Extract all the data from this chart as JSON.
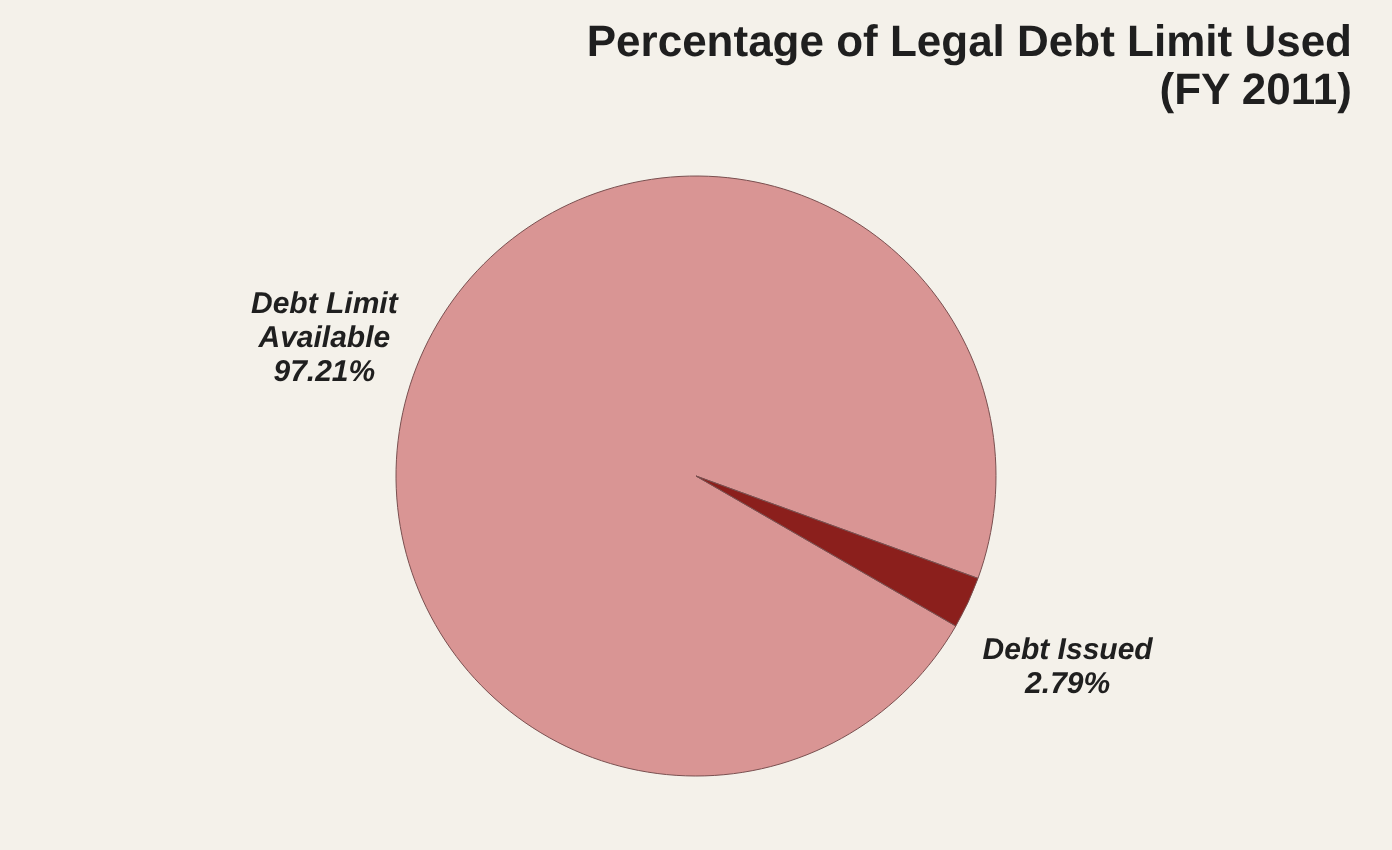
{
  "chart_data": {
    "type": "pie",
    "title": "Percentage of Legal Debt Limit Used (FY 2011)",
    "categories": [
      "Debt Limit Available",
      "Debt Issued"
    ],
    "values": [
      97.21,
      2.79
    ],
    "colors": [
      "#d99594",
      "#8b1f1c"
    ],
    "value_labels": [
      "97.21%",
      "2.79%"
    ],
    "legend": false
  }
}
